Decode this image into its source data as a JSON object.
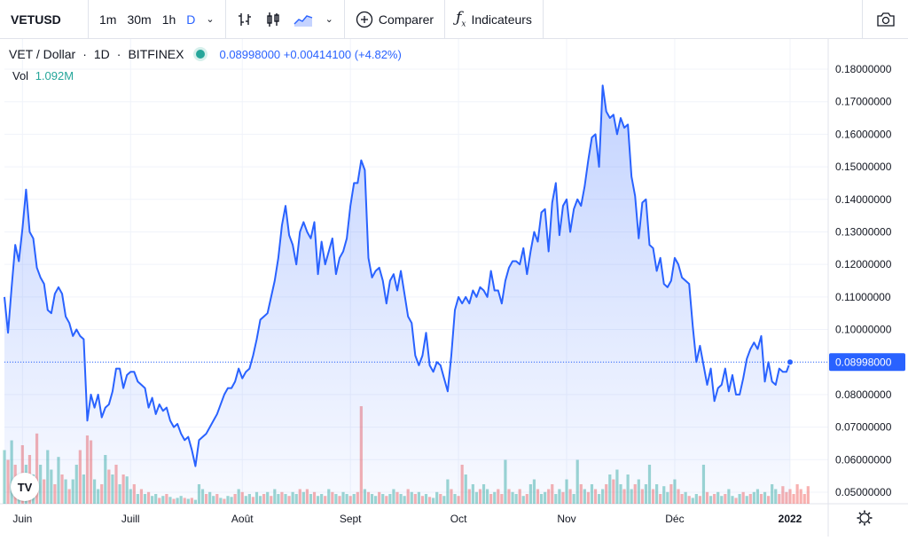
{
  "toolbar": {
    "symbol": "VETUSD",
    "intervals": [
      "1m",
      "30m",
      "1h",
      "D"
    ],
    "active_interval": "D",
    "compare_label": "Comparer",
    "indicators_label": "Indicateurs"
  },
  "legend": {
    "pair": "VET / Dollar",
    "timeframe": "1D",
    "exchange": "BITFINEX",
    "last": "0.08998000",
    "change": "+0.00414100",
    "change_pct": "(+4.82%)",
    "vol_label": "Vol",
    "vol_value": "1.092M"
  },
  "colors": {
    "line": "#2962ff",
    "vol_up": "#26a69a",
    "vol_down": "#ef5350",
    "axis_text": "#131722",
    "price_label_bg": "#2962ff"
  },
  "icons": [
    "bar-style-icon",
    "candle-style-icon",
    "area-style-icon",
    "chevron-down-icon",
    "plus-circle-icon",
    "fx-icon",
    "camera-icon",
    "settings-gear-icon"
  ],
  "chart_data": {
    "type": "area",
    "title": "VET / Dollar · 1D · BITFINEX",
    "ylabel": "",
    "ylim": [
      0.045,
      0.185
    ],
    "xlim": [
      0,
      220
    ],
    "y_ticks": [
      "0.18000000",
      "0.17000000",
      "0.16000000",
      "0.15000000",
      "0.14000000",
      "0.13000000",
      "0.12000000",
      "0.11000000",
      "0.10000000",
      "0.09000000",
      "0.08000000",
      "0.07000000",
      "0.06000000",
      "0.05000000"
    ],
    "y_tick_values": [
      0.18,
      0.17,
      0.16,
      0.15,
      0.14,
      0.13,
      0.12,
      0.11,
      0.1,
      0.09,
      0.08,
      0.07,
      0.06,
      0.05
    ],
    "x_tick_labels": [
      "Juin",
      "Juill",
      "Août",
      "Sept",
      "Oct",
      "Nov",
      "Déc",
      "2022"
    ],
    "x_tick_positions": [
      5,
      35,
      66,
      96,
      126,
      156,
      186,
      218
    ],
    "last_price_label": "0.08998000",
    "last_value": 0.08998,
    "series": [
      {
        "values": [
          0.11,
          0.099,
          0.113,
          0.126,
          0.121,
          0.131,
          0.143,
          0.13,
          0.128,
          0.119,
          0.116,
          0.114,
          0.106,
          0.105,
          0.111,
          0.113,
          0.111,
          0.104,
          0.102,
          0.098,
          0.1,
          0.098,
          0.097,
          0.072,
          0.08,
          0.076,
          0.08,
          0.073,
          0.076,
          0.077,
          0.081,
          0.088,
          0.088,
          0.082,
          0.086,
          0.087,
          0.087,
          0.084,
          0.083,
          0.082,
          0.076,
          0.079,
          0.074,
          0.077,
          0.075,
          0.076,
          0.072,
          0.07,
          0.071,
          0.068,
          0.066,
          0.067,
          0.063,
          0.058,
          0.066,
          0.067,
          0.068,
          0.07,
          0.072,
          0.074,
          0.077,
          0.08,
          0.082,
          0.082,
          0.084,
          0.088,
          0.085,
          0.087,
          0.088,
          0.092,
          0.097,
          0.103,
          0.104,
          0.105,
          0.11,
          0.115,
          0.122,
          0.132,
          0.138,
          0.129,
          0.126,
          0.12,
          0.13,
          0.133,
          0.13,
          0.128,
          0.133,
          0.117,
          0.127,
          0.12,
          0.124,
          0.128,
          0.117,
          0.122,
          0.124,
          0.128,
          0.138,
          0.145,
          0.145,
          0.152,
          0.149,
          0.122,
          0.116,
          0.118,
          0.119,
          0.115,
          0.108,
          0.115,
          0.117,
          0.112,
          0.118,
          0.111,
          0.104,
          0.102,
          0.092,
          0.089,
          0.092,
          0.099,
          0.089,
          0.087,
          0.09,
          0.089,
          0.085,
          0.081,
          0.092,
          0.106,
          0.11,
          0.108,
          0.11,
          0.108,
          0.112,
          0.11,
          0.113,
          0.112,
          0.11,
          0.118,
          0.112,
          0.112,
          0.108,
          0.115,
          0.119,
          0.121,
          0.121,
          0.12,
          0.125,
          0.117,
          0.124,
          0.13,
          0.127,
          0.136,
          0.137,
          0.124,
          0.139,
          0.145,
          0.129,
          0.138,
          0.14,
          0.13,
          0.137,
          0.14,
          0.138,
          0.144,
          0.152,
          0.159,
          0.16,
          0.15,
          0.175,
          0.167,
          0.165,
          0.166,
          0.16,
          0.165,
          0.162,
          0.163,
          0.147,
          0.141,
          0.128,
          0.139,
          0.14,
          0.126,
          0.125,
          0.118,
          0.122,
          0.114,
          0.113,
          0.115,
          0.122,
          0.12,
          0.116,
          0.115,
          0.114,
          0.101,
          0.09,
          0.095,
          0.089,
          0.083,
          0.088,
          0.078,
          0.082,
          0.083,
          0.088,
          0.081,
          0.086,
          0.08,
          0.08,
          0.085,
          0.091,
          0.094,
          0.096,
          0.094,
          0.098,
          0.084,
          0.09,
          0.084,
          0.083,
          0.088,
          0.087,
          0.087,
          0.09
        ]
      }
    ],
    "volume_series": {
      "values": [
        0.55,
        0.45,
        0.65,
        0.4,
        0.3,
        0.6,
        0.4,
        0.5,
        0.3,
        0.72,
        0.4,
        0.25,
        0.55,
        0.35,
        0.2,
        0.48,
        0.3,
        0.25,
        0.15,
        0.25,
        0.4,
        0.55,
        0.3,
        0.7,
        0.65,
        0.25,
        0.15,
        0.2,
        0.5,
        0.35,
        0.3,
        0.4,
        0.2,
        0.3,
        0.28,
        0.15,
        0.2,
        0.1,
        0.15,
        0.1,
        0.12,
        0.08,
        0.1,
        0.06,
        0.08,
        0.1,
        0.07,
        0.05,
        0.06,
        0.08,
        0.06,
        0.05,
        0.06,
        0.04,
        0.2,
        0.15,
        0.1,
        0.12,
        0.08,
        0.1,
        0.06,
        0.05,
        0.08,
        0.07,
        0.1,
        0.15,
        0.12,
        0.08,
        0.1,
        0.07,
        0.12,
        0.08,
        0.1,
        0.12,
        0.08,
        0.15,
        0.1,
        0.12,
        0.1,
        0.08,
        0.12,
        0.1,
        0.15,
        0.12,
        0.15,
        0.1,
        0.12,
        0.08,
        0.1,
        0.08,
        0.15,
        0.12,
        0.1,
        0.08,
        0.12,
        0.1,
        0.08,
        0.1,
        0.12,
        1.0,
        0.15,
        0.12,
        0.1,
        0.08,
        0.12,
        0.1,
        0.08,
        0.1,
        0.15,
        0.12,
        0.1,
        0.08,
        0.15,
        0.12,
        0.1,
        0.12,
        0.08,
        0.1,
        0.07,
        0.06,
        0.12,
        0.1,
        0.08,
        0.25,
        0.15,
        0.1,
        0.08,
        0.4,
        0.3,
        0.15,
        0.2,
        0.12,
        0.15,
        0.2,
        0.15,
        0.1,
        0.12,
        0.15,
        0.1,
        0.45,
        0.15,
        0.12,
        0.1,
        0.15,
        0.08,
        0.1,
        0.2,
        0.25,
        0.15,
        0.1,
        0.12,
        0.15,
        0.2,
        0.1,
        0.15,
        0.12,
        0.25,
        0.15,
        0.1,
        0.45,
        0.2,
        0.15,
        0.12,
        0.2,
        0.15,
        0.1,
        0.15,
        0.2,
        0.3,
        0.25,
        0.35,
        0.2,
        0.15,
        0.3,
        0.15,
        0.2,
        0.25,
        0.15,
        0.2,
        0.4,
        0.15,
        0.2,
        0.1,
        0.18,
        0.12,
        0.2,
        0.25,
        0.15,
        0.1,
        0.12,
        0.08,
        0.06,
        0.1,
        0.08,
        0.4,
        0.12,
        0.08,
        0.1,
        0.12,
        0.08,
        0.1,
        0.15,
        0.08,
        0.06,
        0.1,
        0.12,
        0.08,
        0.1,
        0.12,
        0.15,
        0.1,
        0.12,
        0.08,
        0.2,
        0.15,
        0.1,
        0.18,
        0.12,
        0.15,
        0.1,
        0.2,
        0.15,
        0.1,
        0.18
      ],
      "direction_up": [
        1,
        0,
        1,
        0,
        1,
        0,
        1,
        0,
        1,
        0,
        1,
        0,
        1,
        1,
        0,
        1,
        0,
        1,
        0,
        1,
        1,
        0,
        1,
        0,
        0,
        1,
        1,
        0,
        1,
        0,
        1,
        0,
        1,
        0,
        1,
        1,
        0,
        1,
        0,
        1,
        0,
        1,
        1,
        0,
        1,
        0,
        1,
        0,
        1,
        1,
        0,
        1,
        0,
        1,
        1,
        1,
        0,
        1,
        1,
        0,
        1,
        0,
        1,
        1,
        0,
        1,
        0,
        1,
        1,
        0,
        1,
        1,
        0,
        1,
        0,
        1,
        1,
        0,
        1,
        0,
        1,
        1,
        0,
        1,
        0,
        1,
        0,
        1,
        1,
        0,
        1,
        0,
        1,
        0,
        1,
        1,
        0,
        1,
        0,
        0,
        1,
        0,
        1,
        1,
        0,
        1,
        0,
        1,
        1,
        0,
        1,
        1,
        0,
        1,
        0,
        1,
        0,
        1,
        0,
        1,
        1,
        0,
        1,
        1,
        0,
        1,
        0,
        0,
        1,
        0,
        1,
        1,
        0,
        1,
        1,
        0,
        1,
        0,
        0,
        1,
        0,
        1,
        1,
        0,
        1,
        0,
        1,
        1,
        0,
        1,
        1,
        0,
        0,
        1,
        1,
        0,
        1,
        0,
        1,
        1,
        0,
        1,
        0,
        1,
        0,
        1,
        1,
        0,
        1,
        0,
        1,
        1,
        0,
        1,
        1,
        0,
        1,
        0,
        1,
        1,
        0,
        1,
        0,
        1,
        1,
        0,
        1,
        0,
        0,
        1,
        0,
        1,
        1,
        0,
        1,
        0,
        1,
        0,
        1,
        1,
        0,
        1,
        1,
        0,
        1,
        0,
        1,
        0,
        1,
        1,
        0,
        1,
        0,
        1,
        1,
        0
      ]
    }
  },
  "bottom_right_icon": "settings-gear-icon"
}
